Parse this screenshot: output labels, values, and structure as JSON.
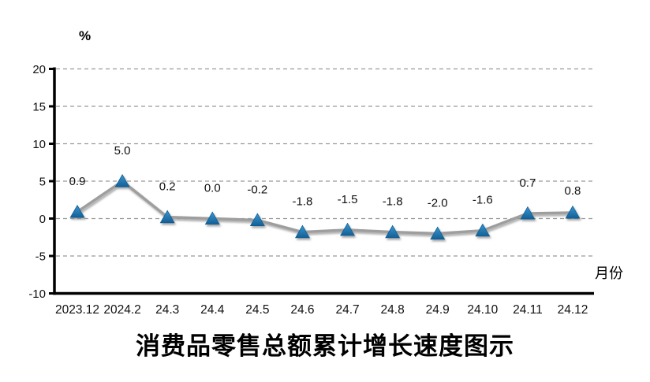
{
  "page": {
    "background": "#ffffff"
  },
  "chart_data": {
    "type": "line",
    "title": "消费品零售总额累计增长速度图示",
    "y_axis_unit_label": "%",
    "x_axis_label": "月份",
    "categories": [
      "2023.12",
      "2024.2",
      "24.3",
      "24.4",
      "24.5",
      "24.6",
      "24.7",
      "24.8",
      "24.9",
      "24.10",
      "24.11",
      "24.12"
    ],
    "values": [
      0.9,
      5.0,
      0.2,
      0.0,
      -0.2,
      -1.8,
      -1.5,
      -1.8,
      -2.0,
      -1.6,
      0.7,
      0.8
    ],
    "data_labels": [
      "0.9",
      "5.0",
      "0.2",
      "0.0",
      "-0.2",
      "-1.8",
      "-1.5",
      "-1.8",
      "-2.0",
      "-1.6",
      "0.7",
      "0.8"
    ],
    "y_ticks": [
      20,
      15,
      10,
      5,
      0,
      -5,
      -10
    ],
    "ylim": [
      -10,
      20
    ],
    "grid": "horizontal-dashed",
    "legend": "none",
    "marker": "triangle",
    "colors": {
      "line": "#9e9e9e",
      "marker_top": "#3a97d3",
      "marker_bottom": "#135f95",
      "marker_outline": "#0f5d92",
      "grid": "#999999",
      "axis": "#000000",
      "text": "#111111"
    }
  }
}
